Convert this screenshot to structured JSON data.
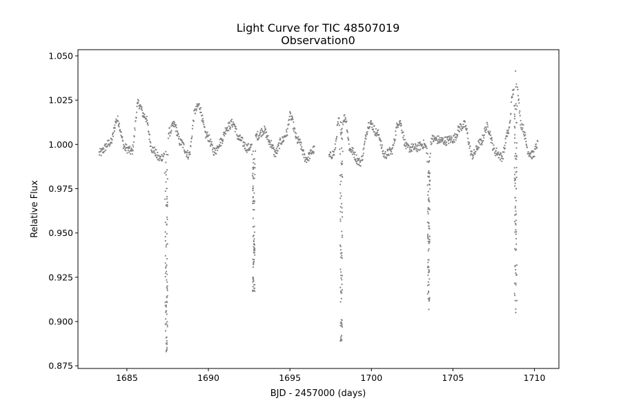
{
  "chart_data": {
    "type": "scatter",
    "title": "Light Curve for TIC 48507019",
    "subtitle": "Observation0",
    "xlabel": "BJD - 2457000 (days)",
    "ylabel": "Relative Flux",
    "xlim": [
      1682.0,
      1711.5
    ],
    "ylim": [
      0.8735,
      1.0535
    ],
    "xticks": [
      1685,
      1690,
      1695,
      1700,
      1705,
      1710
    ],
    "xtick_labels": [
      "1685",
      "1690",
      "1695",
      "1700",
      "1705",
      "1710"
    ],
    "yticks": [
      0.875,
      0.9,
      0.925,
      0.95,
      0.975,
      1.0,
      1.025,
      1.05
    ],
    "ytick_labels": [
      "0.875",
      "0.900",
      "0.925",
      "0.950",
      "0.975",
      "1.000",
      "1.025",
      "1.050"
    ],
    "grid": false,
    "marker_color": "#808080",
    "series": [
      {
        "segments": [
          {
            "range": [
              1683.3,
              1696.5
            ]
          },
          {
            "range": [
              1697.4,
              1710.2
            ]
          }
        ],
        "baseline_points": [
          [
            1683.3,
            0.995
          ],
          [
            1684.0,
            1.001
          ],
          [
            1684.4,
            1.014
          ],
          [
            1684.9,
            0.998
          ],
          [
            1685.3,
            0.996
          ],
          [
            1685.7,
            1.023
          ],
          [
            1686.1,
            1.016
          ],
          [
            1686.6,
            0.997
          ],
          [
            1687.0,
            0.992
          ],
          [
            1687.3,
            0.994
          ],
          [
            1687.6,
            1.007
          ],
          [
            1687.9,
            1.011
          ],
          [
            1688.3,
            1.001
          ],
          [
            1688.8,
            0.994
          ],
          [
            1689.2,
            1.019
          ],
          [
            1689.4,
            1.022
          ],
          [
            1689.9,
            1.005
          ],
          [
            1690.4,
            0.996
          ],
          [
            1690.7,
            1.001
          ],
          [
            1691.2,
            1.01
          ],
          [
            1691.5,
            1.012
          ],
          [
            1691.9,
            1.003
          ],
          [
            1692.4,
            0.998
          ],
          [
            1692.7,
            0.999
          ],
          [
            1693.0,
            1.005
          ],
          [
            1693.4,
            1.008
          ],
          [
            1693.8,
            1.001
          ],
          [
            1694.1,
            0.995
          ],
          [
            1694.5,
            1.002
          ],
          [
            1694.8,
            1.006
          ],
          [
            1695.0,
            1.016
          ],
          [
            1695.5,
            1.002
          ],
          [
            1696.0,
            0.992
          ],
          [
            1696.5,
            0.997
          ],
          [
            1697.4,
            0.993
          ],
          [
            1697.7,
            0.995
          ],
          [
            1698.0,
            1.013
          ],
          [
            1698.4,
            1.015
          ],
          [
            1698.7,
            0.997
          ],
          [
            1699.3,
            0.99
          ],
          [
            1699.9,
            1.012
          ],
          [
            1700.4,
            1.006
          ],
          [
            1700.8,
            0.994
          ],
          [
            1701.2,
            0.996
          ],
          [
            1701.7,
            1.013
          ],
          [
            1702.2,
            0.998
          ],
          [
            1702.7,
            0.998
          ],
          [
            1703.2,
            1.0
          ],
          [
            1703.5,
            0.996
          ],
          [
            1703.7,
            1.003
          ],
          [
            1704.5,
            1.002
          ],
          [
            1705.0,
            1.003
          ],
          [
            1705.5,
            1.01
          ],
          [
            1705.7,
            1.011
          ],
          [
            1706.2,
            0.994
          ],
          [
            1706.7,
            1.001
          ],
          [
            1707.1,
            1.01
          ],
          [
            1707.6,
            0.996
          ],
          [
            1708.0,
            0.993
          ],
          [
            1708.4,
            1.007
          ],
          [
            1708.7,
            1.03
          ],
          [
            1708.85,
            1.042
          ],
          [
            1709.2,
            1.011
          ],
          [
            1709.7,
            0.995
          ],
          [
            1709.9,
            0.994
          ],
          [
            1710.2,
            1.0
          ]
        ],
        "eclipses": [
          {
            "center": 1687.42,
            "min_flux": 0.883,
            "half_width": 0.12
          },
          {
            "center": 1692.78,
            "min_flux": 0.917,
            "half_width": 0.12
          },
          {
            "center": 1698.15,
            "min_flux": 0.889,
            "half_width": 0.12
          },
          {
            "center": 1703.52,
            "min_flux": 0.911,
            "half_width": 0.12
          },
          {
            "center": 1708.85,
            "min_flux": 0.904,
            "half_width": 0.12
          }
        ]
      }
    ]
  }
}
